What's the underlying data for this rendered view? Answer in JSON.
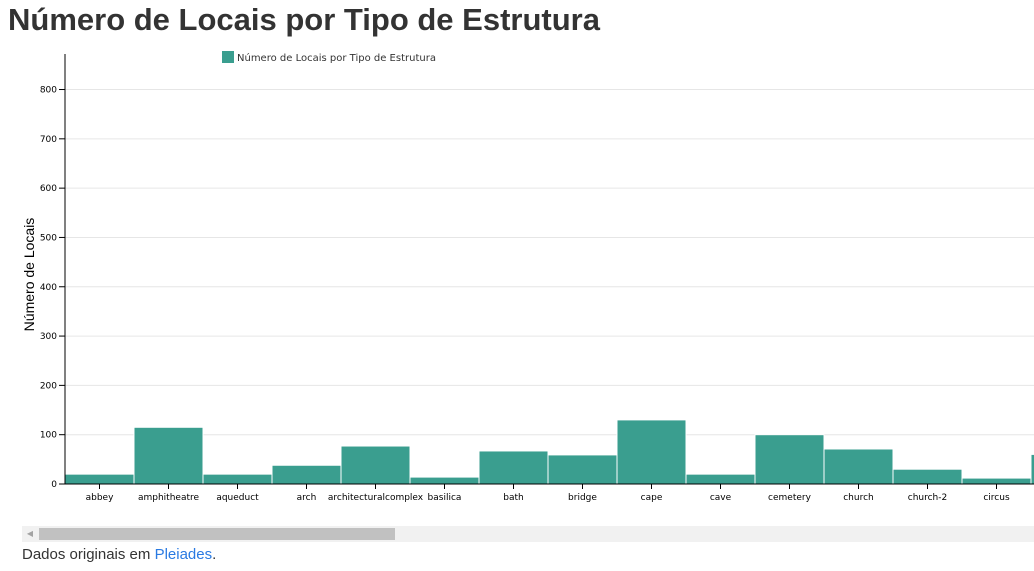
{
  "page": {
    "title": "Número de Locais por Tipo de Estrutura"
  },
  "footer": {
    "prefix": "Dados originais em ",
    "link_text": "Pleiades",
    "suffix": "."
  },
  "colors": {
    "bar": "#3a9e8f",
    "grid": "#e6e6e6",
    "link": "#2a7ae2",
    "scrollbar_track": "#f1f1f1",
    "scrollbar_thumb": "#c1c1c1"
  },
  "scrollbar": {
    "position_fraction": 0.0,
    "left_arrow_icon": "triangle-left-icon"
  },
  "chart_data": {
    "type": "bar",
    "title": "",
    "xlabel": "",
    "ylabel": "Número de Locais",
    "ylim": [
      0,
      870
    ],
    "yticks": [
      0,
      100,
      200,
      300,
      400,
      500,
      600,
      700,
      800
    ],
    "grid": true,
    "legend": {
      "position": "top-left",
      "entries": [
        "Número de Locais por Tipo de Estrutura"
      ]
    },
    "categories": [
      "abbey",
      "amphitheatre",
      "aqueduct",
      "arch",
      "architecturalcomplex",
      "basilica",
      "bath",
      "bridge",
      "cape",
      "cave",
      "cemetery",
      "church",
      "church-2",
      "circus"
    ],
    "series": [
      {
        "name": "Número de Locais por Tipo de Estrutura",
        "values": [
          20,
          115,
          20,
          38,
          77,
          14,
          67,
          59,
          130,
          20,
          100,
          71,
          30,
          12
        ]
      }
    ]
  }
}
